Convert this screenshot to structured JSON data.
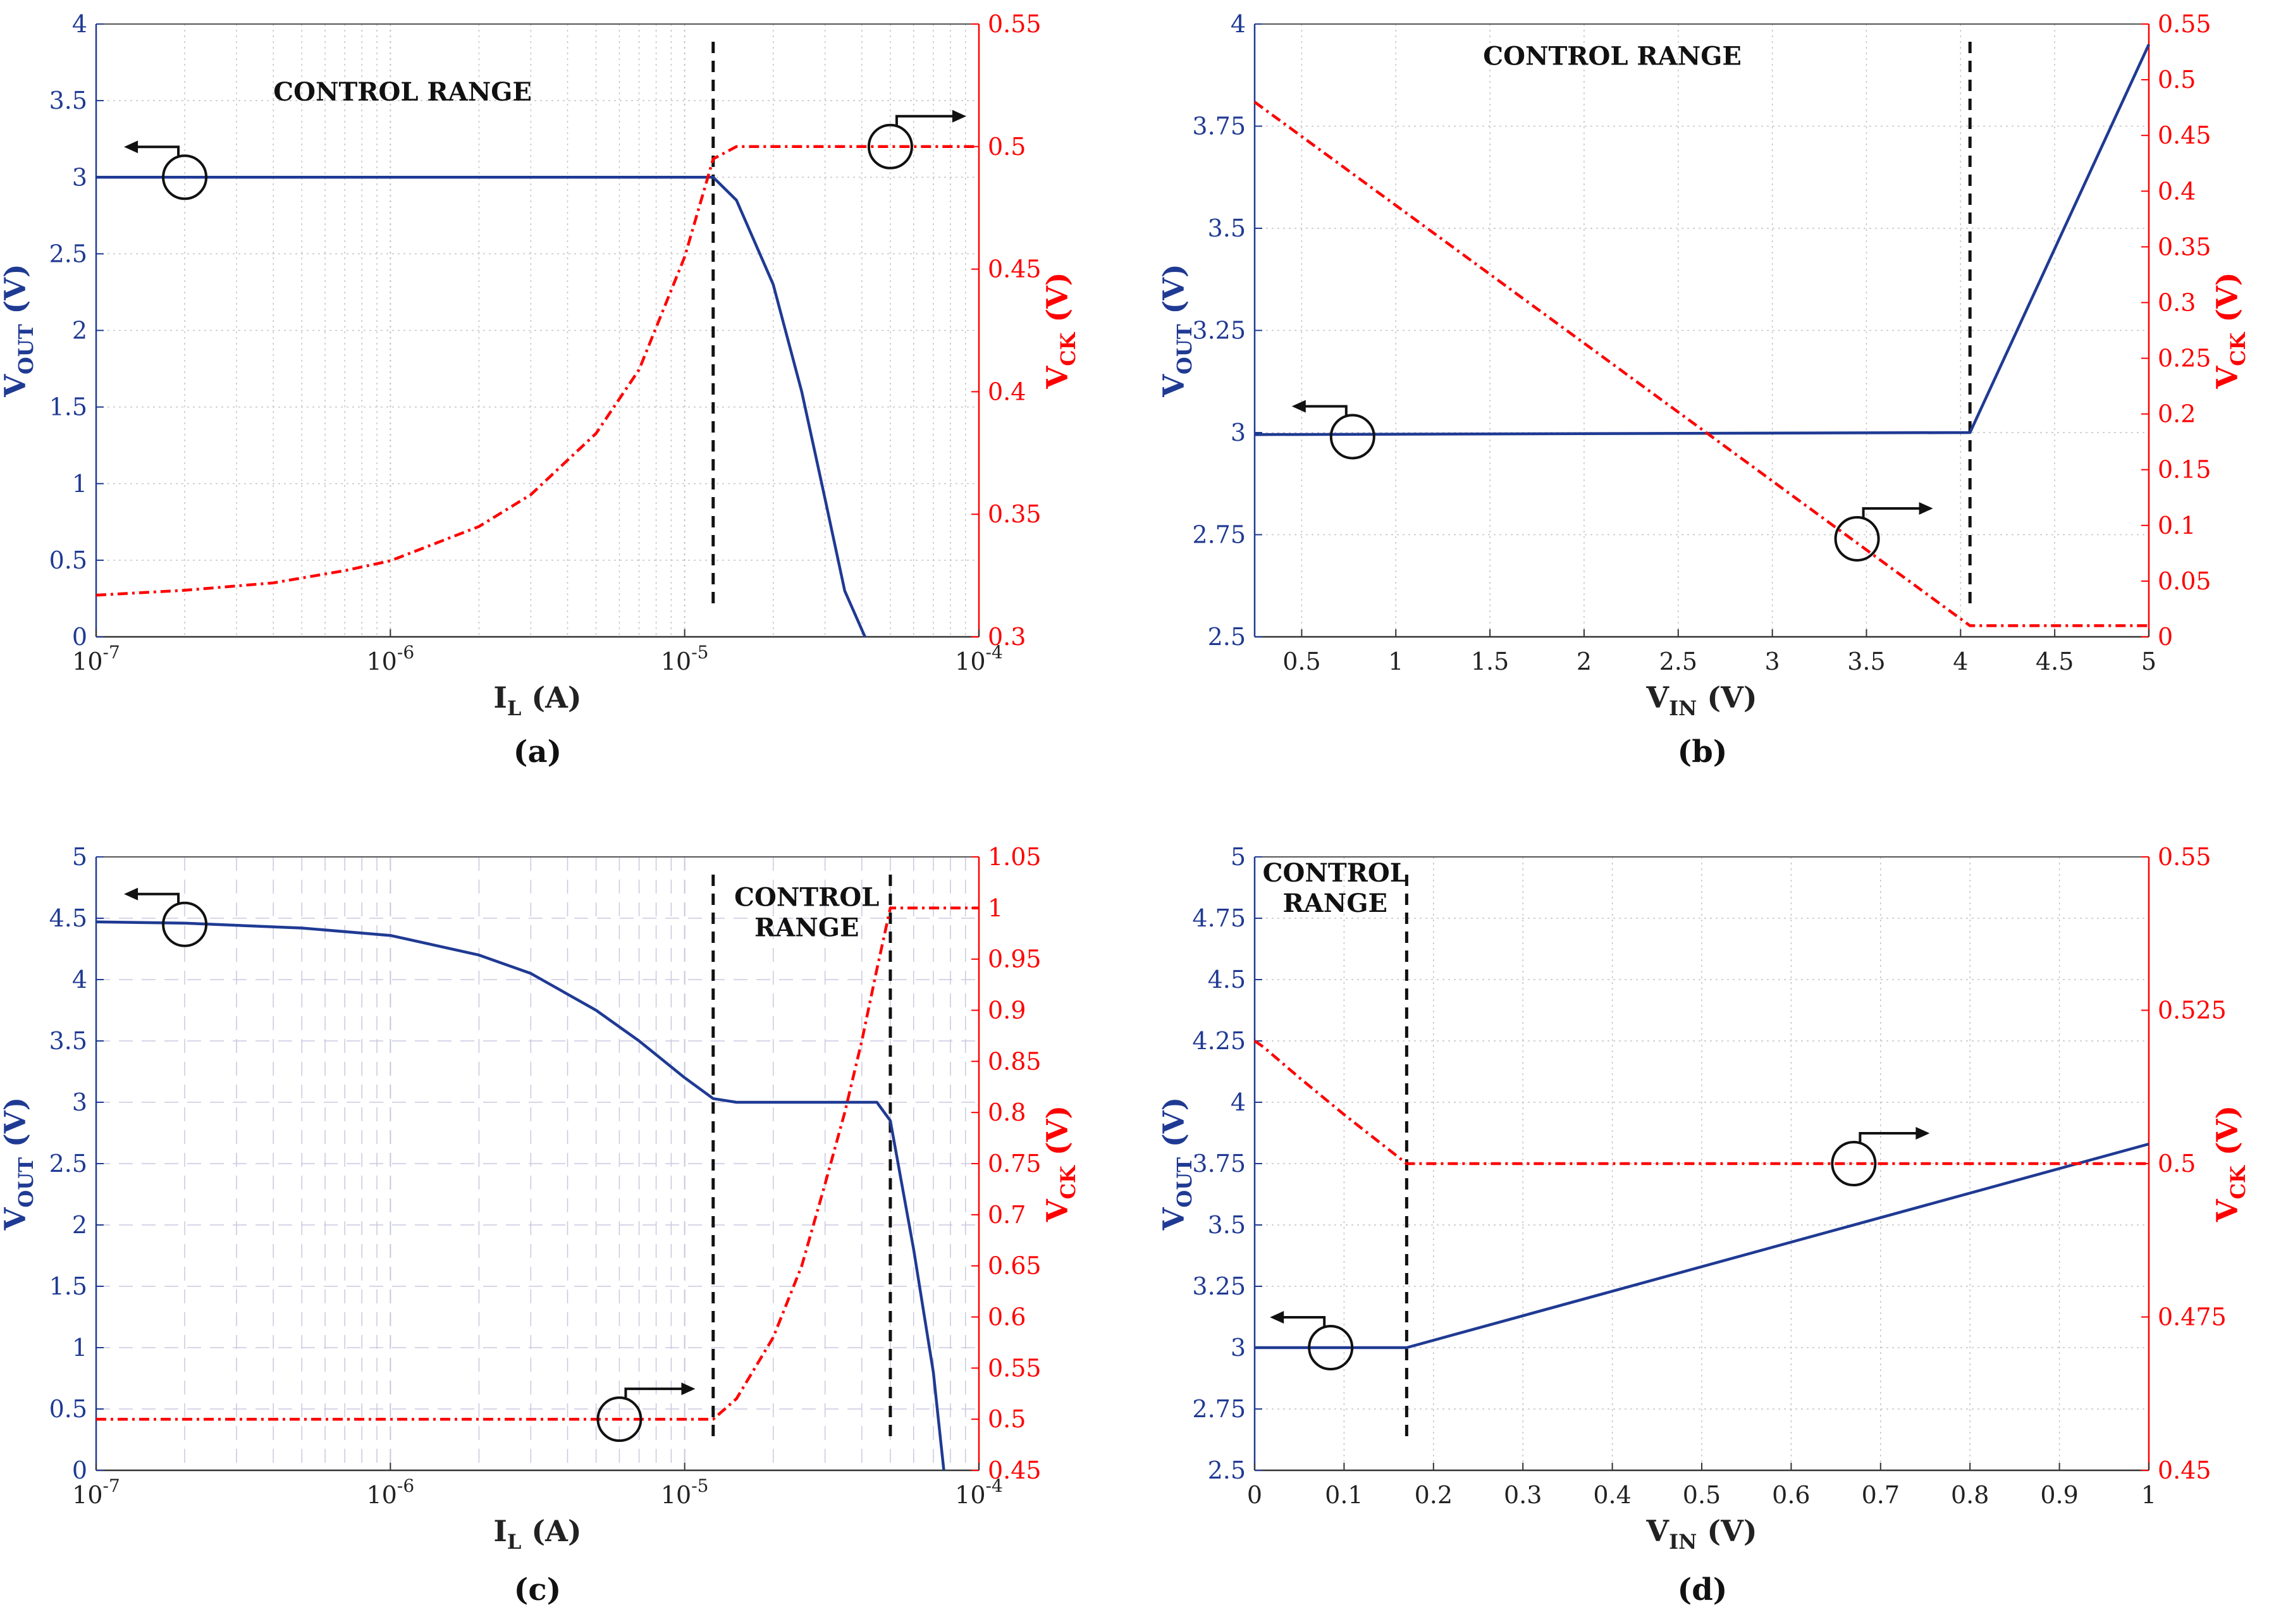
{
  "chart_data": [
    {
      "id": "a",
      "caption": "(a)",
      "type": "line",
      "xscale": "log",
      "x_tick_labels": [
        "10^-7",
        "10^-6",
        "10^-5",
        "10^-4"
      ],
      "x_ticks": [
        1e-07,
        1e-06,
        1e-05,
        0.0001
      ],
      "xlim": [
        1e-07,
        0.0001
      ],
      "xlabel_main": "I",
      "xlabel_sub": "L",
      "xlabel_unit": " (A)",
      "y_left": {
        "label_main": "V",
        "label_sub": "OUT",
        "label_unit": " (V)",
        "ylim": [
          0,
          4
        ],
        "ticks": [
          0,
          0.5,
          1,
          1.5,
          2,
          2.5,
          3,
          3.5,
          4
        ],
        "tick_labels": [
          "0",
          "0.5",
          "1",
          "1.5",
          "2",
          "2.5",
          "3",
          "3.5",
          "4"
        ]
      },
      "y_right": {
        "label_main": "V",
        "label_sub": "CK",
        "label_unit": " (V)",
        "ylim": [
          0.3,
          0.55
        ],
        "ticks": [
          0.3,
          0.35,
          0.4,
          0.45,
          0.5,
          0.55
        ],
        "tick_labels": [
          "0.3",
          "0.35",
          "0.4",
          "0.45",
          "0.5",
          "0.55"
        ]
      },
      "grid": "dotted",
      "annotation": {
        "lines": [
          "CONTROL RANGE"
        ],
        "x": 1.1e-06,
        "y": 3.5,
        "axis": "left"
      },
      "vlines": [
        1.25e-05
      ],
      "series": [
        {
          "name": "VOUT",
          "axis": "left",
          "style": "solid",
          "color": "#1f3a93",
          "x": [
            1e-07,
            1e-06,
            1e-05,
            1.25e-05,
            1.5e-05,
            2e-05,
            2.5e-05,
            3e-05,
            3.5e-05,
            4.1e-05
          ],
          "y": [
            3.0,
            3.0,
            3.0,
            3.0,
            2.85,
            2.3,
            1.6,
            0.9,
            0.3,
            0.0
          ]
        },
        {
          "name": "VCK",
          "axis": "right",
          "style": "dashdot",
          "color": "#ff0000",
          "x": [
            1e-07,
            2e-07,
            4e-07,
            7e-07,
            1e-06,
            2e-06,
            3e-06,
            5e-06,
            7e-06,
            1e-05,
            1.25e-05,
            1.5e-05,
            2e-05,
            5e-05,
            0.0001
          ],
          "y": [
            0.317,
            0.319,
            0.322,
            0.327,
            0.331,
            0.345,
            0.358,
            0.383,
            0.409,
            0.455,
            0.495,
            0.5,
            0.5,
            0.5,
            0.5
          ]
        }
      ],
      "markers": [
        {
          "x": 2e-07,
          "y": 3.0,
          "axis": "left",
          "direction": "left"
        },
        {
          "x": 5e-05,
          "y": 0.5,
          "axis": "right",
          "direction": "right"
        }
      ]
    },
    {
      "id": "b",
      "caption": "(b)",
      "type": "line",
      "xscale": "linear",
      "x_tick_labels": [
        "0.5",
        "1",
        "1.5",
        "2",
        "2.5",
        "3",
        "3.5",
        "4",
        "4.5",
        "5"
      ],
      "x_ticks": [
        0.5,
        1,
        1.5,
        2,
        2.5,
        3,
        3.5,
        4,
        4.5,
        5
      ],
      "xlim": [
        0.25,
        5
      ],
      "xlabel_main": "V",
      "xlabel_sub": "IN",
      "xlabel_unit": " (V)",
      "y_left": {
        "label_main": "V",
        "label_sub": "OUT",
        "label_unit": " (V)",
        "ylim": [
          2.5,
          4
        ],
        "ticks": [
          2.5,
          2.75,
          3,
          3.25,
          3.5,
          3.75,
          4
        ],
        "tick_labels": [
          "2.5",
          "2.75",
          "3",
          "3.25",
          "3.5",
          "3.75",
          "4"
        ]
      },
      "y_right": {
        "label_main": "V",
        "label_sub": "CK",
        "label_unit": " (V)",
        "ylim": [
          0,
          0.55
        ],
        "ticks": [
          0,
          0.05,
          0.1,
          0.15,
          0.2,
          0.25,
          0.3,
          0.35,
          0.4,
          0.45,
          0.5,
          0.55
        ],
        "tick_labels": [
          "0",
          "0.05",
          "0.1",
          "0.15",
          "0.2",
          "0.25",
          "0.3",
          "0.35",
          "0.4",
          "0.45",
          "0.5",
          "0.55"
        ]
      },
      "grid": "dotted",
      "annotation": {
        "lines": [
          "CONTROL RANGE"
        ],
        "x": 2.15,
        "y": 3.9,
        "axis": "left"
      },
      "vlines": [
        4.05
      ],
      "series": [
        {
          "name": "VOUT",
          "axis": "left",
          "style": "solid",
          "color": "#1f3a93",
          "x": [
            0.25,
            4.05,
            5.0
          ],
          "y": [
            2.995,
            3.0,
            3.95
          ]
        },
        {
          "name": "VCK",
          "axis": "right",
          "style": "dashdot",
          "color": "#ff0000",
          "x": [
            0.25,
            4.05,
            5.0
          ],
          "y": [
            0.48,
            0.01,
            0.01
          ]
        }
      ],
      "markers": [
        {
          "x": 0.77,
          "y": 2.99,
          "axis": "left",
          "direction": "left"
        },
        {
          "x": 3.45,
          "y": 0.088,
          "axis": "right",
          "direction": "right"
        }
      ]
    },
    {
      "id": "c",
      "caption": "(c)",
      "type": "line",
      "xscale": "log",
      "x_tick_labels": [
        "10^-7",
        "10^-6",
        "10^-5",
        "10^-4"
      ],
      "x_ticks": [
        1e-07,
        1e-06,
        1e-05,
        0.0001
      ],
      "xlim": [
        1e-07,
        0.0001
      ],
      "xlabel_main": "I",
      "xlabel_sub": "L",
      "xlabel_unit": " (A)",
      "y_left": {
        "label_main": "V",
        "label_sub": "OUT",
        "label_unit": " (V)",
        "ylim": [
          0,
          5
        ],
        "ticks": [
          0,
          0.5,
          1,
          1.5,
          2,
          2.5,
          3,
          3.5,
          4,
          4.5,
          5
        ],
        "tick_labels": [
          "0",
          "0.5",
          "1",
          "1.5",
          "2",
          "2.5",
          "3",
          "3.5",
          "4",
          "4.5",
          "5"
        ]
      },
      "y_right": {
        "label_main": "V",
        "label_sub": "CK",
        "label_unit": " (V)",
        "ylim": [
          0.45,
          1.05
        ],
        "ticks": [
          0.45,
          0.5,
          0.55,
          0.6,
          0.65,
          0.7,
          0.75,
          0.8,
          0.85,
          0.9,
          0.95,
          1,
          1.05
        ],
        "tick_labels": [
          "0.45",
          "0.5",
          "0.55",
          "0.6",
          "0.65",
          "0.7",
          "0.75",
          "0.8",
          "0.85",
          "0.9",
          "0.95",
          "1",
          "1.05"
        ]
      },
      "grid": "dashed",
      "annotation": {
        "lines": [
          "CONTROL",
          "RANGE"
        ],
        "x": 2.6e-05,
        "y": 4.6,
        "axis": "left"
      },
      "vlines": [
        1.25e-05,
        5e-05
      ],
      "series": [
        {
          "name": "VOUT",
          "axis": "left",
          "style": "solid",
          "color": "#1f3a93",
          "x": [
            1e-07,
            2e-07,
            5e-07,
            1e-06,
            2e-06,
            3e-06,
            5e-06,
            7e-06,
            1e-05,
            1.25e-05,
            1.5e-05,
            3e-05,
            4.5e-05,
            5e-05,
            6e-05,
            7e-05,
            7.6e-05
          ],
          "y": [
            4.47,
            4.46,
            4.42,
            4.36,
            4.2,
            4.05,
            3.75,
            3.5,
            3.2,
            3.03,
            3.0,
            3.0,
            3.0,
            2.85,
            1.8,
            0.8,
            0.0
          ]
        },
        {
          "name": "VCK",
          "axis": "right",
          "style": "dashdot",
          "color": "#ff0000",
          "x": [
            1e-07,
            1e-06,
            1e-05,
            1.25e-05,
            1.5e-05,
            2e-05,
            2.5e-05,
            3e-05,
            3.5e-05,
            4e-05,
            4.5e-05,
            5e-05,
            0.0001
          ],
          "y": [
            0.5,
            0.5,
            0.5,
            0.5,
            0.52,
            0.58,
            0.65,
            0.73,
            0.8,
            0.87,
            0.94,
            1.0,
            1.0
          ]
        }
      ],
      "markers": [
        {
          "x": 2e-07,
          "y": 4.45,
          "axis": "left",
          "direction": "left"
        },
        {
          "x": 6e-06,
          "y": 0.5,
          "axis": "right",
          "direction": "right"
        }
      ]
    },
    {
      "id": "d",
      "caption": "(d)",
      "type": "line",
      "xscale": "linear",
      "x_tick_labels": [
        "0",
        "0.1",
        "0.2",
        "0.3",
        "0.4",
        "0.5",
        "0.6",
        "0.7",
        "0.8",
        "0.9",
        "1"
      ],
      "x_ticks": [
        0,
        0.1,
        0.2,
        0.3,
        0.4,
        0.5,
        0.6,
        0.7,
        0.8,
        0.9,
        1
      ],
      "xlim": [
        0,
        1
      ],
      "xlabel_main": "V",
      "xlabel_sub": "IN",
      "xlabel_unit": " (V)",
      "y_left": {
        "label_main": "V",
        "label_sub": "OUT",
        "label_unit": " (V)",
        "ylim": [
          2.5,
          5
        ],
        "ticks": [
          2.5,
          2.75,
          3,
          3.25,
          3.5,
          3.75,
          4,
          4.25,
          4.5,
          4.75,
          5
        ],
        "tick_labels": [
          "2.5",
          "2.75",
          "3",
          "3.25",
          "3.5",
          "3.75",
          "4",
          "4.25",
          "4.5",
          "4.75",
          "5"
        ]
      },
      "y_right": {
        "label_main": "V",
        "label_sub": "CK",
        "label_unit": " (V)",
        "ylim": [
          0.45,
          0.55
        ],
        "ticks": [
          0.45,
          0.475,
          0.5,
          0.525,
          0.55
        ],
        "tick_labels": [
          "0.45",
          "0.475",
          "0.5",
          "0.525",
          "0.55"
        ]
      },
      "grid": "dotted",
      "annotation": {
        "lines": [
          "CONTROL",
          "RANGE"
        ],
        "x": 0.09,
        "y": 4.9,
        "axis": "left"
      },
      "vlines": [
        0.17
      ],
      "series": [
        {
          "name": "VOUT",
          "axis": "left",
          "style": "solid",
          "color": "#1f3a93",
          "x": [
            0,
            0.17,
            1.0
          ],
          "y": [
            3.0,
            3.0,
            3.83
          ]
        },
        {
          "name": "VCK",
          "axis": "right",
          "style": "dashdot",
          "color": "#ff0000",
          "x": [
            0,
            0.01,
            0.05,
            0.1,
            0.17,
            0.5,
            1.0
          ],
          "y": [
            0.52,
            0.519,
            0.514,
            0.508,
            0.5,
            0.5,
            0.5
          ]
        }
      ],
      "markers": [
        {
          "x": 0.085,
          "y": 3.0,
          "axis": "left",
          "direction": "left"
        },
        {
          "x": 0.67,
          "y": 0.5,
          "axis": "right",
          "direction": "right"
        }
      ]
    }
  ]
}
